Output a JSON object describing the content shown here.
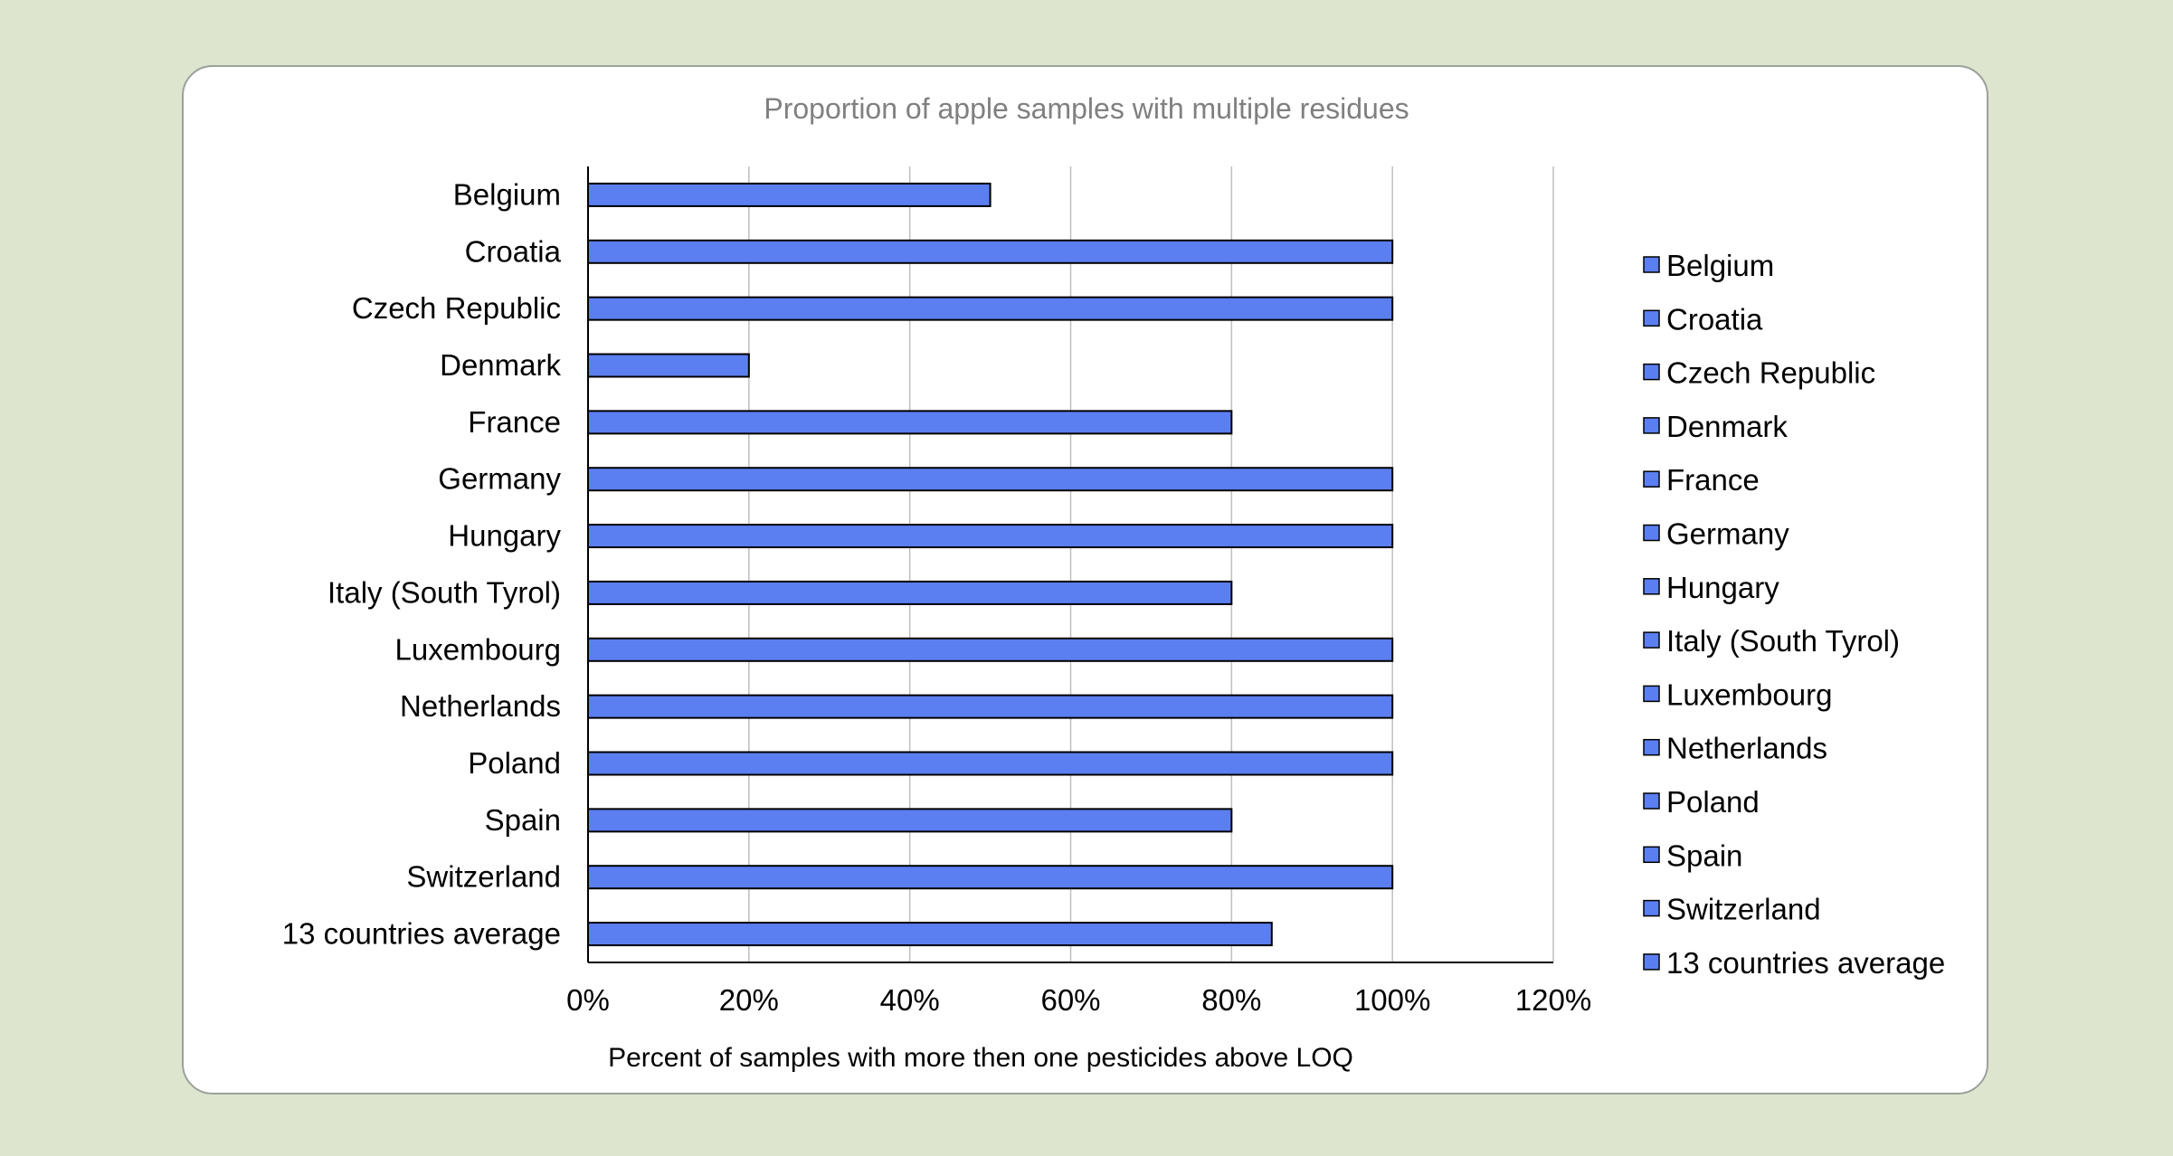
{
  "chart_data": {
    "type": "bar",
    "orientation": "horizontal",
    "title": "Proportion of apple samples with multiple residues",
    "xlabel": "Percent of samples with more then one pesticides above LOQ",
    "ylabel": "",
    "categories": [
      "Belgium",
      "Croatia",
      "Czech Republic",
      "Denmark",
      "France",
      "Germany",
      "Hungary",
      "Italy (South Tyrol)",
      "Luxembourg",
      "Netherlands",
      "Poland",
      "Spain",
      "Switzerland",
      "13 countries average"
    ],
    "values": [
      50,
      100,
      100,
      20,
      80,
      100,
      100,
      80,
      100,
      100,
      100,
      80,
      100,
      85
    ],
    "xlim": [
      0,
      120
    ],
    "xticks": [
      0,
      20,
      40,
      60,
      80,
      100,
      120
    ],
    "xtick_labels": [
      "0%",
      "20%",
      "40%",
      "60%",
      "80%",
      "100%",
      "120%"
    ],
    "grid": true,
    "legend_position": "right",
    "legend": [
      "Belgium",
      "Croatia",
      "Czech Republic",
      "Denmark",
      "France",
      "Germany",
      "Hungary",
      "Italy (South Tyrol)",
      "Luxembourg",
      "Netherlands",
      "Poland",
      "Spain",
      "Switzerland",
      "13 countries average"
    ],
    "colors": {
      "bar": "#5b7ff0",
      "bar_edge": "#000000",
      "grid": "#bfbfbf",
      "title": "#808080"
    }
  }
}
